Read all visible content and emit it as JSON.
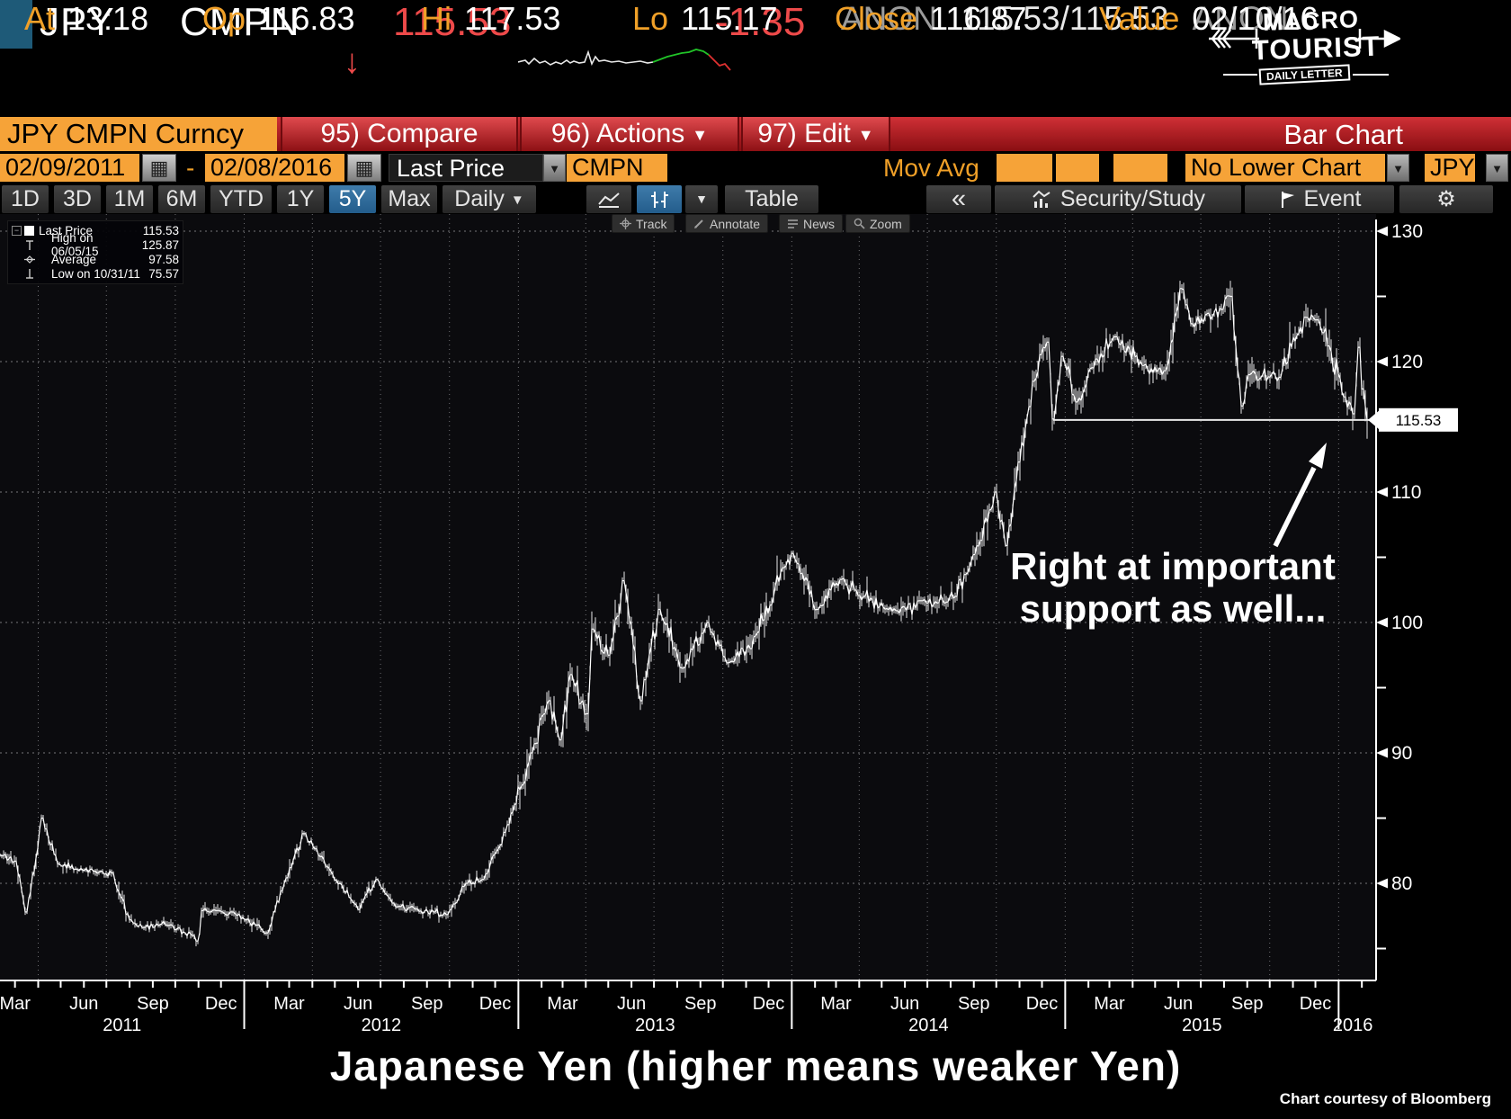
{
  "header": {
    "ticker": "JPY",
    "exchange": "CMPN",
    "down_arrow": "↓",
    "last": "115.53",
    "change": "-1.35",
    "anon_left": "ANON",
    "bid_ask": "115.53/115.53",
    "anon_right": "ANON",
    "stats": [
      {
        "label": "At",
        "value": "13:18"
      },
      {
        "label": "Op",
        "value": "116.83"
      },
      {
        "label": "Hi",
        "value": "117.53"
      },
      {
        "label": "Lo",
        "value": "115.17"
      },
      {
        "label": "Close",
        "value": "116.87"
      },
      {
        "label": "Value",
        "value": "02/10/16"
      }
    ],
    "sparkline": {
      "white_color": "#e8e8e8",
      "up_color": "#21c428",
      "down_color": "#e03131",
      "white": [
        [
          0,
          20
        ],
        [
          8,
          18
        ],
        [
          12,
          22
        ],
        [
          18,
          16
        ],
        [
          24,
          21
        ],
        [
          30,
          19
        ],
        [
          36,
          23
        ],
        [
          42,
          20
        ],
        [
          48,
          22
        ],
        [
          54,
          18
        ],
        [
          58,
          21
        ],
        [
          62,
          19
        ],
        [
          68,
          21
        ],
        [
          74,
          20
        ],
        [
          78,
          9
        ],
        [
          82,
          22
        ],
        [
          86,
          14
        ],
        [
          90,
          19
        ],
        [
          96,
          18
        ],
        [
          104,
          20
        ],
        [
          112,
          19
        ],
        [
          120,
          21
        ],
        [
          128,
          20
        ],
        [
          136,
          19
        ],
        [
          144,
          21
        ],
        [
          150,
          20
        ]
      ],
      "up": [
        [
          150,
          20
        ],
        [
          158,
          17
        ],
        [
          166,
          14
        ],
        [
          174,
          12
        ],
        [
          182,
          10
        ],
        [
          190,
          9
        ],
        [
          198,
          6
        ],
        [
          206,
          8
        ],
        [
          212,
          12
        ]
      ],
      "down": [
        [
          212,
          12
        ],
        [
          218,
          18
        ],
        [
          224,
          24
        ],
        [
          230,
          22
        ],
        [
          236,
          29
        ]
      ]
    }
  },
  "logo": {
    "line1": "MACRO",
    "line2": "TOURIST",
    "banner": "DAILY LETTER"
  },
  "toolbar": {
    "security": "JPY CMPN Curncy",
    "compare": "95) Compare",
    "actions": "96) Actions",
    "edit": "97) Edit",
    "chart_type": "Bar Chart"
  },
  "daterow": {
    "start_date": "02/09/2011",
    "dash": "-",
    "end_date": "02/08/2016",
    "field_type": "Last Price",
    "source": "CMPN",
    "movavg_label": "Mov Avg",
    "movavg_inputs": [
      "",
      "",
      ""
    ],
    "lower_chart": "No Lower Chart",
    "currency": "JPY"
  },
  "tabs": {
    "periods": [
      "1D",
      "3D",
      "1M",
      "6M",
      "YTD",
      "1Y",
      "5Y",
      "Max"
    ],
    "selected": "5Y",
    "frequency": "Daily",
    "table": "Table",
    "collapse": "«",
    "security_study": "Security/Study",
    "event": "Event"
  },
  "minibar": {
    "track": "Track",
    "annotate": "Annotate",
    "news": "News",
    "zoom": "Zoom"
  },
  "legend": {
    "rows": [
      {
        "label": "Last Price",
        "value": "115.53"
      },
      {
        "label": "High on 06/05/15",
        "value": "125.87"
      },
      {
        "label": "Average",
        "value": "97.58"
      },
      {
        "label": "Low on 10/31/11",
        "value": "75.57"
      }
    ]
  },
  "annotation": {
    "line1": "Right at important",
    "line2": "support as well..."
  },
  "price_marker": "115.53",
  "footer": {
    "title": "Japanese Yen (higher means weaker Yen)",
    "credit": "Chart courtesy of Bloomberg"
  },
  "chart_data": {
    "type": "line",
    "title": "JPY CMPN Curncy Last Price, Daily, 02/09/2011 - 02/08/2016",
    "x_range": [
      "2011-02-09",
      "2016-02-08"
    ],
    "ylim": [
      72.5,
      131
    ],
    "y_ticks": [
      80,
      90,
      100,
      110,
      120,
      130
    ],
    "y_minor_ticks": [
      75,
      85,
      95,
      105,
      115,
      125
    ],
    "x_axis": {
      "quarter_labels": [
        "Mar",
        "Jun",
        "Sep",
        "Dec"
      ],
      "years": [
        "2011",
        "2012",
        "2013",
        "2014",
        "2015",
        "2016"
      ]
    },
    "legend_stats": {
      "last_price": 115.53,
      "high": {
        "date": "06/05/15",
        "value": 125.87
      },
      "average": 97.58,
      "low": {
        "date": "10/31/11",
        "value": 75.57
      }
    },
    "support_line": {
      "level": 115.53,
      "start": "2014-12-16"
    },
    "last_price_marker": 115.53,
    "grid": true,
    "series": [
      {
        "name": "Last Price",
        "color": "#f0f0f0",
        "anchor_points": [
          [
            "2011-02-09",
            82.2
          ],
          [
            "2011-03-01",
            81.7
          ],
          [
            "2011-03-17",
            77.8
          ],
          [
            "2011-04-06",
            85.0
          ],
          [
            "2011-04-28",
            81.5
          ],
          [
            "2011-05-31",
            81.0
          ],
          [
            "2011-07-08",
            80.8
          ],
          [
            "2011-08-01",
            77.2
          ],
          [
            "2011-08-19",
            76.6
          ],
          [
            "2011-09-20",
            76.8
          ],
          [
            "2011-10-25",
            76.0
          ],
          [
            "2011-10-31",
            75.57
          ],
          [
            "2011-11-07",
            77.9
          ],
          [
            "2011-12-15",
            77.8
          ],
          [
            "2012-01-16",
            76.8
          ],
          [
            "2012-02-01",
            76.2
          ],
          [
            "2012-03-02",
            81.2
          ],
          [
            "2012-03-21",
            83.8
          ],
          [
            "2012-04-20",
            81.3
          ],
          [
            "2012-06-01",
            78.0
          ],
          [
            "2012-06-25",
            80.3
          ],
          [
            "2012-07-23",
            78.2
          ],
          [
            "2012-09-12",
            77.8
          ],
          [
            "2012-09-28",
            77.6
          ],
          [
            "2012-10-25",
            80.0
          ],
          [
            "2012-11-14",
            80.3
          ],
          [
            "2012-12-19",
            84.5
          ],
          [
            "2013-01-18",
            90.0
          ],
          [
            "2013-02-11",
            94.0
          ],
          [
            "2013-02-25",
            91.0
          ],
          [
            "2013-03-12",
            96.0
          ],
          [
            "2013-04-02",
            93.0
          ],
          [
            "2013-04-11",
            99.5
          ],
          [
            "2013-05-01",
            97.5
          ],
          [
            "2013-05-22",
            103.2
          ],
          [
            "2013-06-13",
            94.0
          ],
          [
            "2013-07-08",
            101.0
          ],
          [
            "2013-08-08",
            96.5
          ],
          [
            "2013-09-11",
            100.0
          ],
          [
            "2013-10-08",
            96.9
          ],
          [
            "2013-11-07",
            98.0
          ],
          [
            "2013-12-20",
            104.2
          ],
          [
            "2014-01-02",
            105.3
          ],
          [
            "2014-02-04",
            101.0
          ],
          [
            "2014-03-07",
            103.3
          ],
          [
            "2014-04-07",
            102.0
          ],
          [
            "2014-05-21",
            100.9
          ],
          [
            "2014-07-01",
            101.5
          ],
          [
            "2014-08-08",
            102.0
          ],
          [
            "2014-09-10",
            106.3
          ],
          [
            "2014-10-01",
            110.0
          ],
          [
            "2014-10-15",
            105.9
          ],
          [
            "2014-10-31",
            112.3
          ],
          [
            "2014-11-20",
            118.5
          ],
          [
            "2014-12-08",
            121.5
          ],
          [
            "2014-12-16",
            115.6
          ],
          [
            "2014-12-29",
            120.4
          ],
          [
            "2015-01-16",
            116.9
          ],
          [
            "2015-02-11",
            120.2
          ],
          [
            "2015-03-10",
            121.9
          ],
          [
            "2015-04-14",
            119.7
          ],
          [
            "2015-05-15",
            119.3
          ],
          [
            "2015-06-05",
            125.6
          ],
          [
            "2015-06-18",
            122.9
          ],
          [
            "2015-07-29",
            124.0
          ],
          [
            "2015-08-11",
            125.0
          ],
          [
            "2015-08-24",
            116.6
          ],
          [
            "2015-09-04",
            119.0
          ],
          [
            "2015-10-14",
            118.8
          ],
          [
            "2015-11-18",
            123.4
          ],
          [
            "2015-12-04",
            123.2
          ],
          [
            "2015-12-18",
            121.2
          ],
          [
            "2016-01-08",
            117.3
          ],
          [
            "2016-01-20",
            116.0
          ],
          [
            "2016-01-29",
            121.1
          ],
          [
            "2016-02-03",
            117.9
          ],
          [
            "2016-02-08",
            115.53
          ]
        ]
      }
    ]
  }
}
